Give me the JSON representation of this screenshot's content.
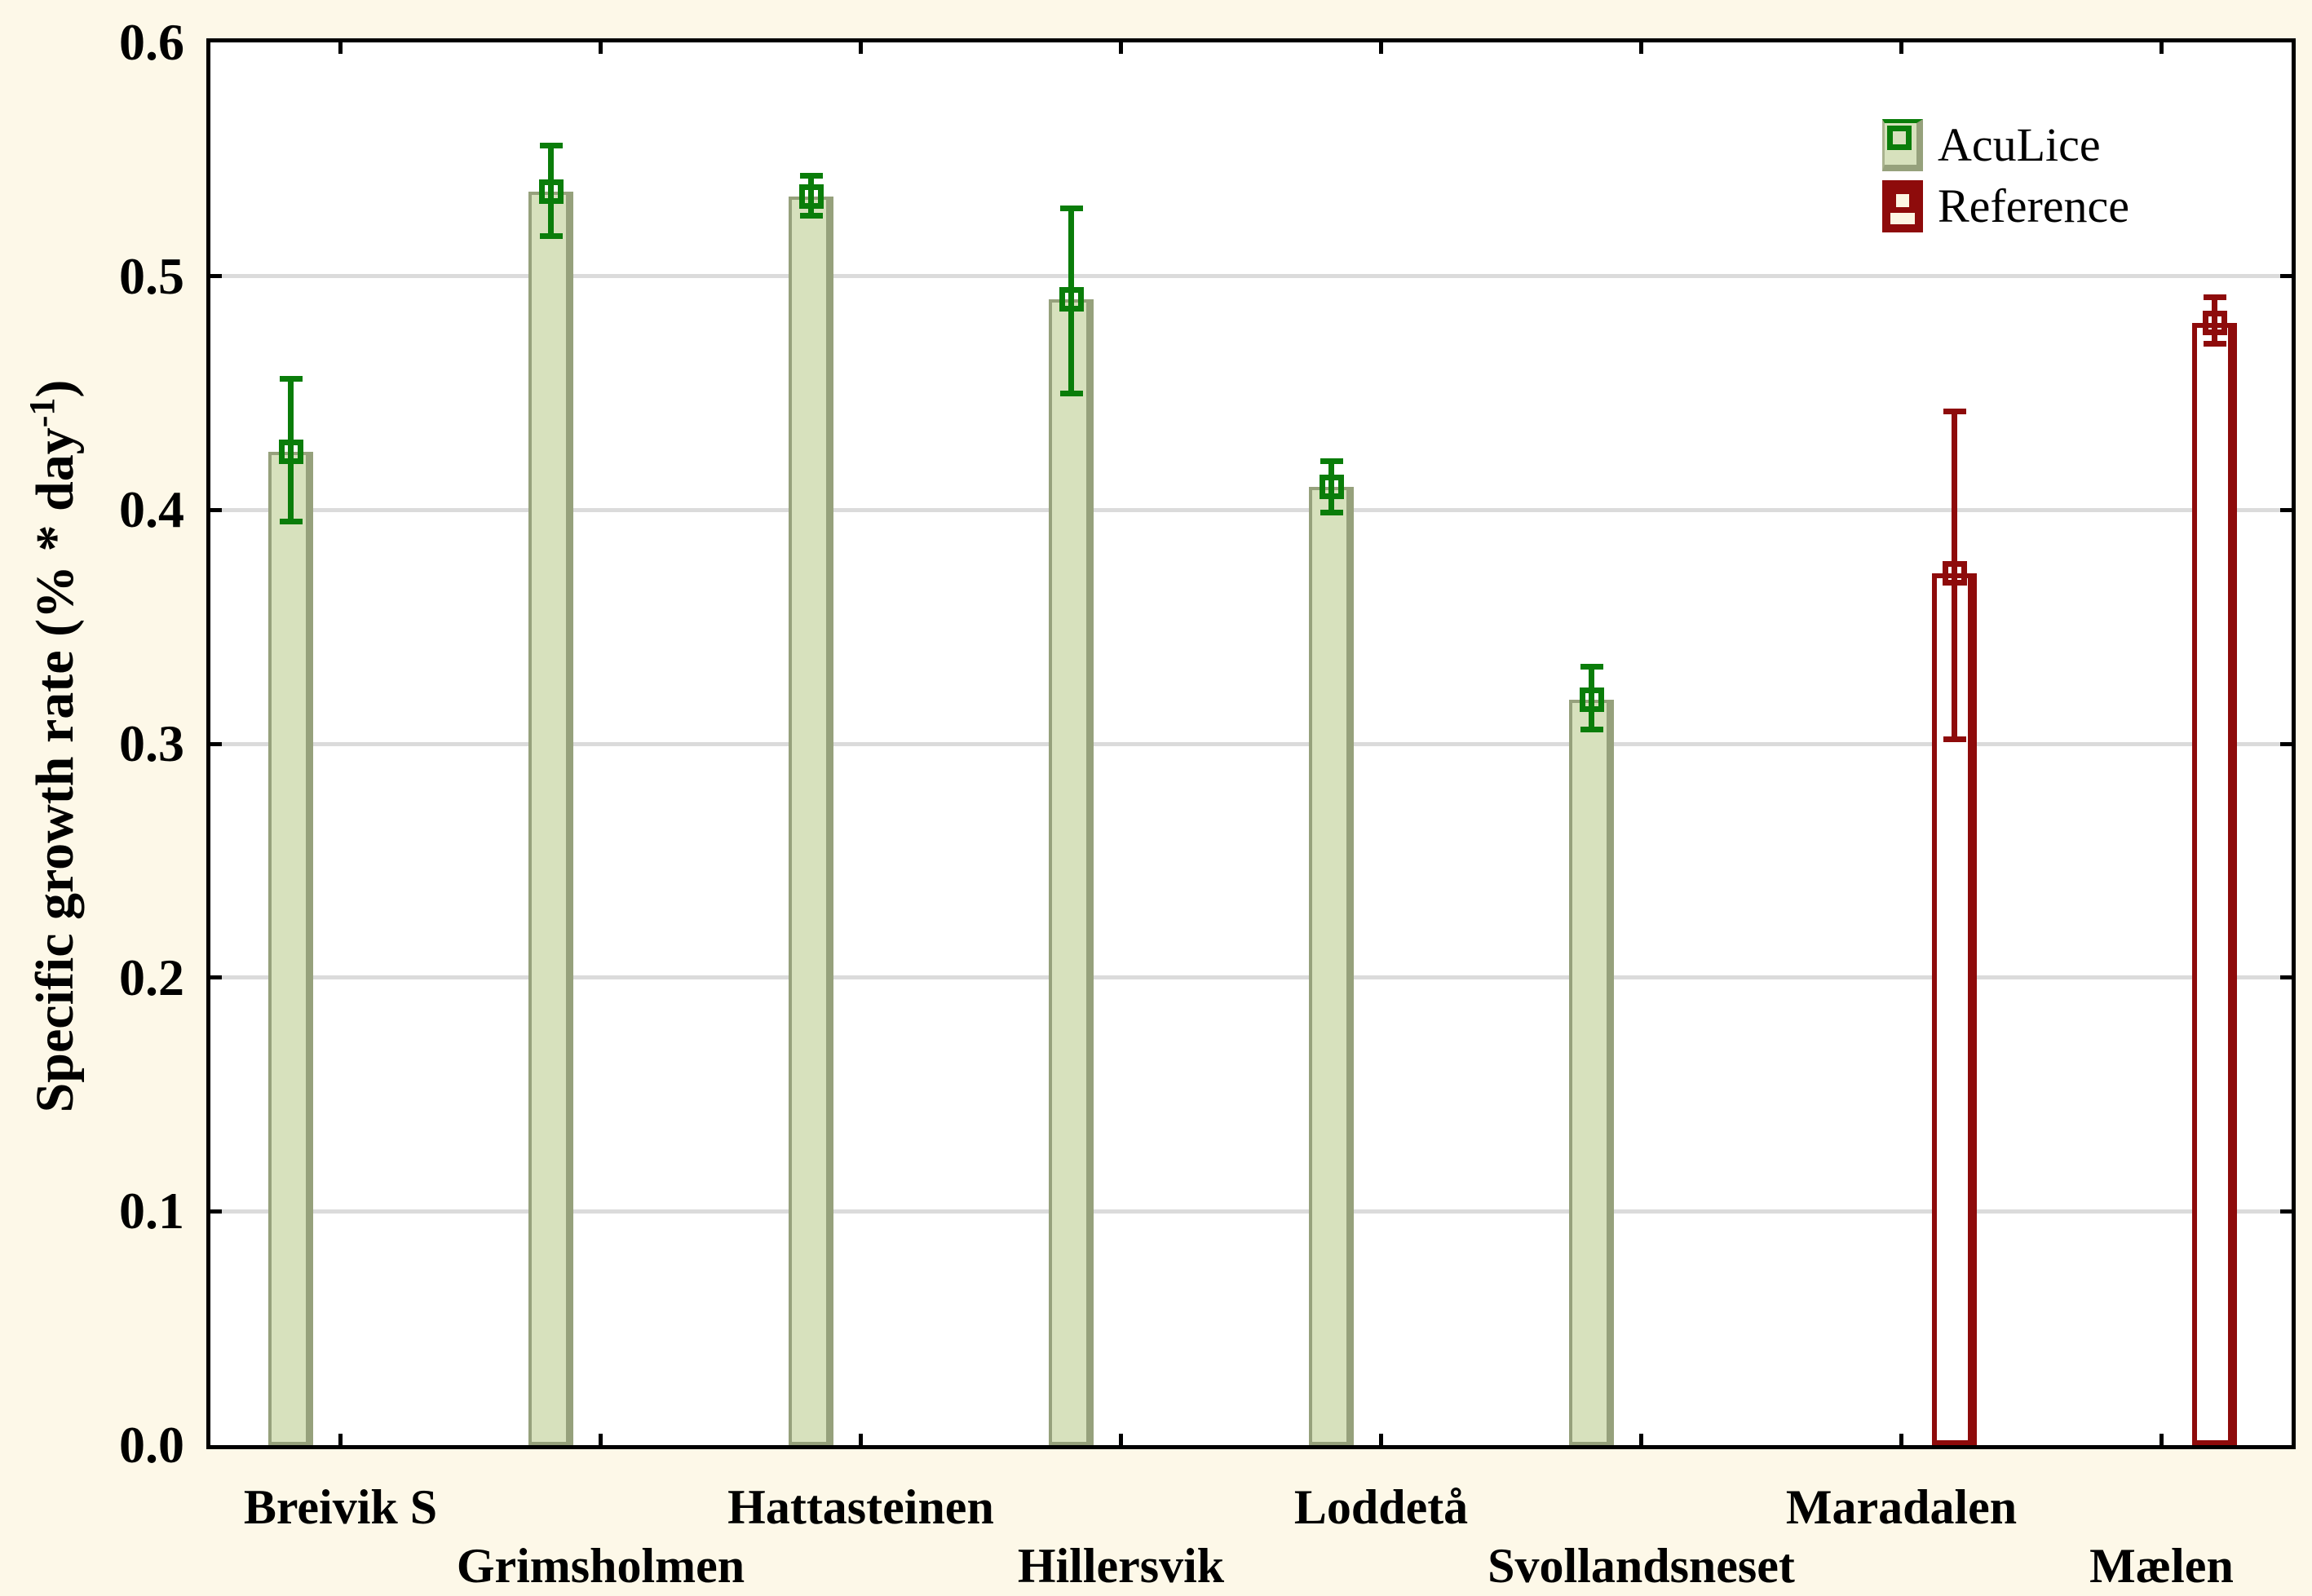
{
  "chart_data": {
    "type": "bar",
    "title": "",
    "ylabel_prefix": "Specific growth rate (% * day",
    "ylabel_sup": "-1",
    "ylabel_suffix": ")",
    "xlabel": "",
    "categories": [
      "Breivik S",
      "Grimsholmen",
      "Hattasteinen",
      "Hillersvik",
      "Loddetå",
      "Svollandsneset",
      "Maradalen",
      "Mælen"
    ],
    "series": [
      {
        "name": "AcuLice",
        "values": [
          0.425,
          0.536,
          0.534,
          0.49,
          0.41,
          0.319,
          null,
          null
        ],
        "ci_low": [
          0.395,
          0.517,
          0.526,
          0.45,
          0.399,
          0.306,
          null,
          null
        ],
        "ci_high": [
          0.456,
          0.556,
          0.543,
          0.529,
          0.421,
          0.333,
          null,
          null
        ],
        "fill": "#D7E1BD",
        "border": "#96A17C",
        "line": "#0A7D0A"
      },
      {
        "name": "Reference",
        "values": [
          null,
          null,
          null,
          null,
          null,
          null,
          0.373,
          0.48
        ],
        "ci_low": [
          null,
          null,
          null,
          null,
          null,
          null,
          0.302,
          0.471
        ],
        "ci_high": [
          null,
          null,
          null,
          null,
          null,
          null,
          0.442,
          0.491
        ],
        "fill": "#FFFFFF",
        "border": "#8E0B0B",
        "line": "#8E0B0B"
      }
    ],
    "ylim": [
      0.0,
      0.6
    ],
    "yticks": {
      "values": [
        0.0,
        0.1,
        0.2,
        0.3,
        0.4,
        0.5,
        0.6
      ],
      "labels": [
        "0.0",
        "0.1",
        "0.2",
        "0.3",
        "0.4",
        "0.5",
        "0.6"
      ]
    },
    "grid": "horizontal",
    "gridline_color": "#DBDBDB",
    "legend_position": "top-right",
    "error_bars": true,
    "marker_shape": "open-square"
  },
  "legend": {
    "items": [
      {
        "label": "AcuLice"
      },
      {
        "label": "Reference"
      }
    ]
  },
  "colors": {
    "page_background": "#FDF8E8",
    "plot_background": "#FFFFFF",
    "frame": "#000000",
    "aculice_fill": "#D7E1BD",
    "aculice_border": "#96A17C",
    "aculice_line": "#0A7D0A",
    "reference_line": "#8E0B0B",
    "gridline": "#DBDBDB"
  }
}
